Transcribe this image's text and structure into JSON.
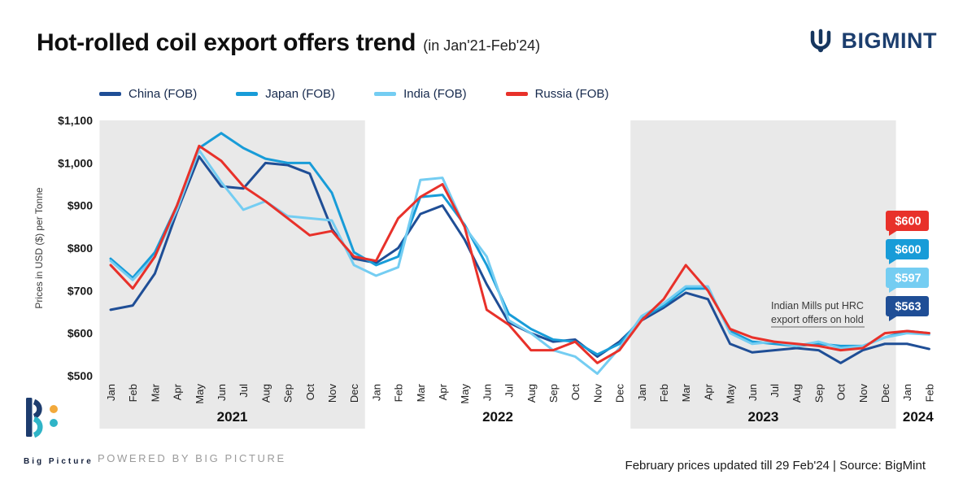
{
  "header": {
    "title": "Hot-rolled coil export offers trend",
    "subtitle": "(in Jan'21-Feb'24)",
    "brand": "BIGMINT"
  },
  "legend": [
    {
      "label": "China (FOB)",
      "color": "#1f4e96"
    },
    {
      "label": "Japan (FOB)",
      "color": "#189cd8"
    },
    {
      "label": "India (FOB)",
      "color": "#74cdf2"
    },
    {
      "label": "Russia (FOB)",
      "color": "#e8312a"
    }
  ],
  "chart_data": {
    "type": "line",
    "title": "Hot-rolled coil export offers trend (in Jan'21-Feb'24)",
    "xlabel": "",
    "ylabel": "Prices in USD ($) per Tonne",
    "ylim": [
      500,
      1100
    ],
    "grid": false,
    "legend_position": "top",
    "band_color": "#e9e9e9",
    "months": [
      "Jan",
      "Feb",
      "Mar",
      "Apr",
      "May",
      "Jun",
      "Jul",
      "Aug",
      "Sep",
      "Oct",
      "Nov",
      "Dec",
      "Jan",
      "Feb",
      "Mar",
      "Apr",
      "May",
      "Jun",
      "Jul",
      "Aug",
      "Sep",
      "Oct",
      "Nov",
      "Dec",
      "Jan",
      "Feb",
      "Mar",
      "Apr",
      "May",
      "Jun",
      "Jul",
      "Aug",
      "Sep",
      "Oct",
      "Nov",
      "Dec",
      "Jan",
      "Feb"
    ],
    "years": [
      {
        "label": "2021",
        "start": 0,
        "end": 11,
        "shaded": true
      },
      {
        "label": "2022",
        "start": 12,
        "end": 23,
        "shaded": false
      },
      {
        "label": "2023",
        "start": 24,
        "end": 35,
        "shaded": true
      },
      {
        "label": "2024",
        "start": 36,
        "end": 37,
        "shaded": false
      }
    ],
    "yticks": {
      "values": [
        500,
        600,
        700,
        800,
        900,
        1000,
        1100
      ],
      "labels": [
        "$500",
        "$600",
        "$700",
        "$800",
        "$900",
        "$1,000",
        "$1,100"
      ]
    },
    "series": [
      {
        "name": "China (FOB)",
        "color": "#1f4e96",
        "values": [
          655,
          665,
          740,
          885,
          1015,
          945,
          940,
          1000,
          995,
          975,
          845,
          775,
          765,
          800,
          880,
          900,
          820,
          715,
          625,
          600,
          580,
          585,
          545,
          580,
          630,
          660,
          695,
          680,
          575,
          555,
          560,
          565,
          560,
          530,
          560,
          575,
          575,
          563
        ]
      },
      {
        "name": "Japan (FOB)",
        "color": "#189cd8",
        "values": [
          775,
          730,
          790,
          900,
          1035,
          1070,
          1035,
          1010,
          1000,
          1000,
          930,
          790,
          760,
          780,
          920,
          925,
          855,
          760,
          645,
          610,
          585,
          580,
          550,
          575,
          635,
          665,
          705,
          705,
          605,
          580,
          575,
          570,
          575,
          570,
          570,
          590,
          605,
          600
        ]
      },
      {
        "name": "India (FOB)",
        "color": "#74cdf2",
        "values": [
          770,
          725,
          780,
          890,
          1030,
          955,
          890,
          910,
          875,
          870,
          865,
          760,
          735,
          755,
          960,
          965,
          850,
          780,
          630,
          600,
          560,
          545,
          505,
          565,
          640,
          670,
          710,
          710,
          600,
          575,
          580,
          570,
          580,
          565,
          570,
          590,
          600,
          597
        ]
      },
      {
        "name": "Russia (FOB)",
        "color": "#e8312a",
        "values": [
          760,
          705,
          780,
          900,
          1040,
          1005,
          945,
          910,
          870,
          830,
          840,
          780,
          770,
          870,
          920,
          950,
          850,
          655,
          620,
          560,
          560,
          580,
          530,
          560,
          630,
          680,
          760,
          700,
          610,
          590,
          580,
          575,
          570,
          560,
          565,
          600,
          605,
          600
        ]
      }
    ],
    "annotation": {
      "lines": [
        "Indian Mills put HRC",
        "export offers on hold"
      ]
    },
    "callouts": [
      {
        "label": "$600",
        "color": "#e8312a"
      },
      {
        "label": "$600",
        "color": "#189cd8"
      },
      {
        "label": "$597",
        "color": "#74cdf2"
      },
      {
        "label": "$563",
        "color": "#1f4e96"
      }
    ]
  },
  "footer": {
    "logo_text": "Big Picture",
    "powered_by": "POWERED BY BIG PICTURE",
    "note": "February prices updated till 29 Feb'24 |  Source: BigMint"
  }
}
